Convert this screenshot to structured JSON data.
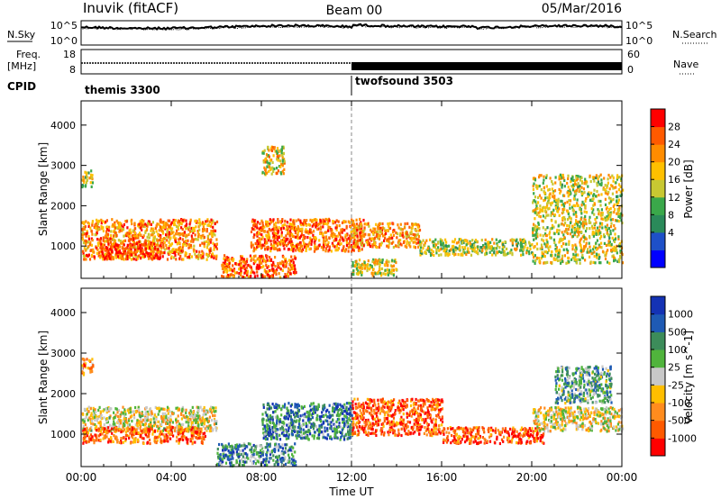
{
  "header": {
    "station": "Inuvik (fitACF)",
    "beam": "Beam 00",
    "date": "05/Mar/2016"
  },
  "noise_panel": {
    "left_label": "N.Sky",
    "right_label": "N.Search",
    "left_ticks": [
      "10^5",
      "10^0"
    ],
    "right_ticks": [
      "10^5",
      "10^0"
    ]
  },
  "freq_panel": {
    "left_label_1": "Freq.",
    "left_label_2": "[MHz]",
    "left_ticks": [
      "18",
      "8"
    ],
    "right_label": "Nave",
    "right_ticks": [
      "60",
      "0"
    ]
  },
  "cpid": {
    "label": "CPID",
    "segments": [
      {
        "name": "themis 3300",
        "start_hour": 0
      },
      {
        "name": "twofsound 3503",
        "start_hour": 12
      }
    ]
  },
  "chart_data": [
    {
      "type": "heatmap",
      "quantity": "Power",
      "colorbar_label": "Power [dB]",
      "colorbar_ticks": [
        "28",
        "24",
        "20",
        "16",
        "12",
        "8",
        "4"
      ],
      "ylabel": "Slant Range [km]",
      "yticks": [
        1000,
        2000,
        3000,
        4000
      ],
      "ylim": [
        200,
        4600
      ],
      "xlim": [
        0,
        24
      ],
      "colors": [
        "#0000ff",
        "#1e50c8",
        "#2a8a5a",
        "#3aa84a",
        "#c8c832",
        "#ffc000",
        "#ff8c00",
        "#ff5a00",
        "#ff0000"
      ],
      "echo_regions": [
        {
          "t0": 0.0,
          "t1": 6.0,
          "r0": 700,
          "r1": 1700,
          "level": 0.72
        },
        {
          "t0": 0.8,
          "t1": 3.5,
          "r0": 700,
          "r1": 1100,
          "level": 0.85
        },
        {
          "t0": 6.2,
          "t1": 9.5,
          "r0": 250,
          "r1": 800,
          "level": 0.8
        },
        {
          "t0": 8.0,
          "t1": 9.0,
          "r0": 2800,
          "r1": 3500,
          "level": 0.6
        },
        {
          "t0": 7.5,
          "t1": 12.5,
          "r0": 900,
          "r1": 1700,
          "level": 0.78
        },
        {
          "t0": 12.0,
          "t1": 15.0,
          "r0": 1000,
          "r1": 1600,
          "level": 0.7
        },
        {
          "t0": 12.0,
          "t1": 14.0,
          "r0": 300,
          "r1": 700,
          "level": 0.55
        },
        {
          "t0": 15.0,
          "t1": 20.0,
          "r0": 800,
          "r1": 1200,
          "level": 0.5
        },
        {
          "t0": 20.0,
          "t1": 24.0,
          "r0": 600,
          "r1": 2800,
          "level": 0.55
        },
        {
          "t0": 0.0,
          "t1": 0.5,
          "r0": 2500,
          "r1": 2900,
          "level": 0.5
        }
      ]
    },
    {
      "type": "heatmap",
      "quantity": "Velocity",
      "colorbar_label": "Velocity [m s^-1]",
      "colorbar_ticks": [
        "1000",
        "500",
        "100",
        "25",
        "-25",
        "-100",
        "-500",
        "-1000"
      ],
      "ylabel": "Slant Range [km]",
      "yticks": [
        1000,
        2000,
        3000,
        4000
      ],
      "ylim": [
        200,
        4600
      ],
      "xlim": [
        0,
        24
      ],
      "colors": [
        "#ff0000",
        "#ff5a00",
        "#ff8c1e",
        "#ffbe00",
        "#c8c8c8",
        "#50b43c",
        "#3c8c5a",
        "#1e5ab4",
        "#1432b4"
      ],
      "echo_regions": [
        {
          "t0": 0.0,
          "t1": 6.0,
          "r0": 1100,
          "r1": 1700,
          "level": 0.45
        },
        {
          "t0": 0.0,
          "t1": 5.5,
          "r0": 800,
          "r1": 1200,
          "level": 0.2
        },
        {
          "t0": 6.0,
          "t1": 9.5,
          "r0": 250,
          "r1": 800,
          "level": 0.72
        },
        {
          "t0": 8.0,
          "t1": 12.0,
          "r0": 900,
          "r1": 1800,
          "level": 0.75
        },
        {
          "t0": 12.0,
          "t1": 16.0,
          "r0": 1000,
          "r1": 1900,
          "level": 0.18
        },
        {
          "t0": 16.0,
          "t1": 20.5,
          "r0": 800,
          "r1": 1200,
          "level": 0.15
        },
        {
          "t0": 20.0,
          "t1": 24.0,
          "r0": 1100,
          "r1": 1700,
          "level": 0.45
        },
        {
          "t0": 21.0,
          "t1": 23.5,
          "r0": 1800,
          "r1": 2700,
          "level": 0.65
        },
        {
          "t0": 0.0,
          "t1": 0.5,
          "r0": 2500,
          "r1": 2900,
          "level": 0.3
        }
      ]
    }
  ],
  "xaxis": {
    "label": "Time UT",
    "ticks": [
      "00:00",
      "04:00",
      "08:00",
      "12:00",
      "16:00",
      "20:00",
      "00:00"
    ]
  }
}
